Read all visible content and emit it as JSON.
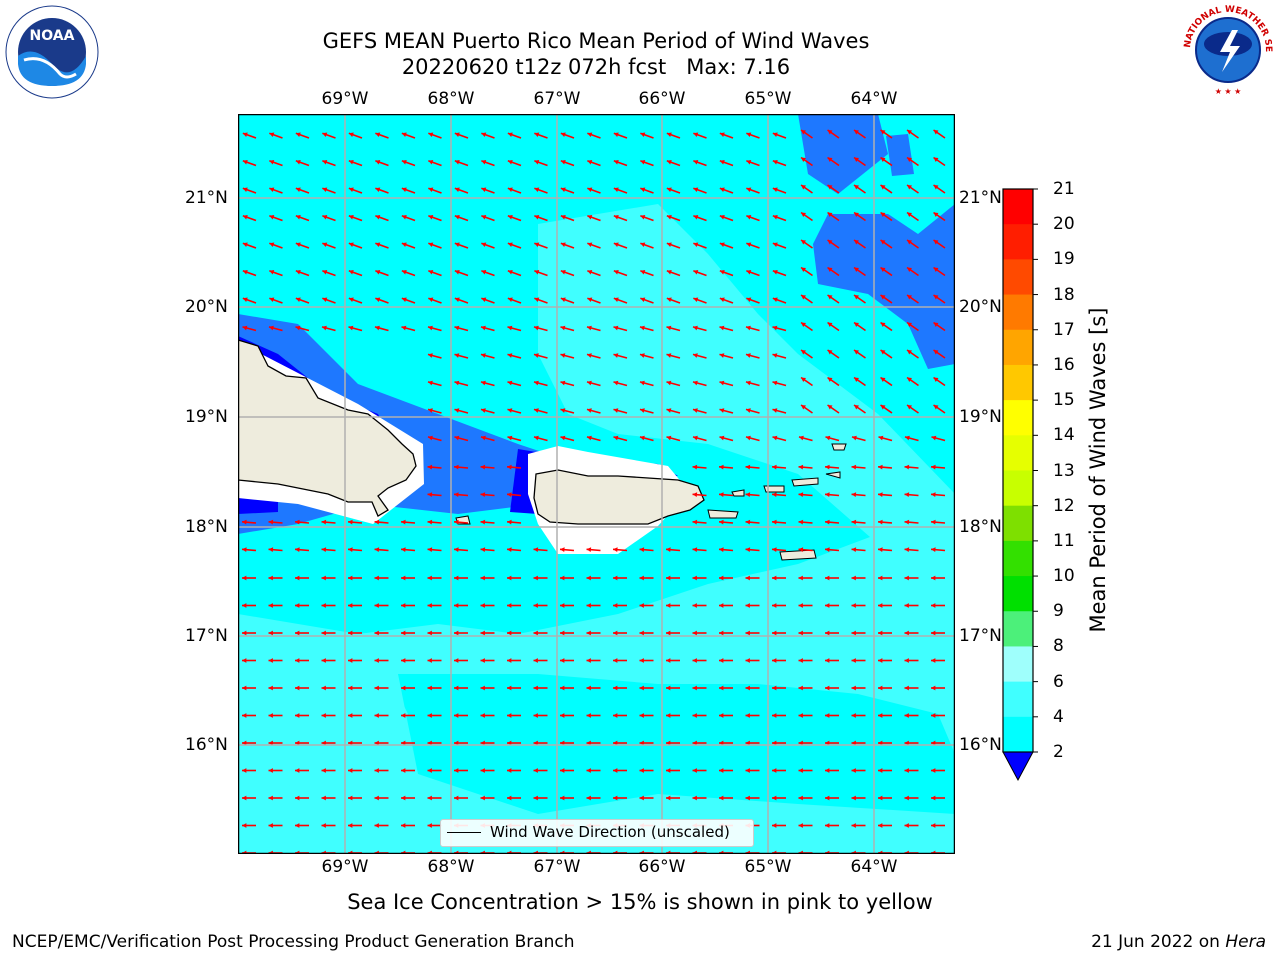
{
  "title_line1": "GEFS MEAN Puerto Rico Mean Period of Wind Waves",
  "title_line2": "20220620 t12z 072h fcst   Max: 7.16",
  "lon_ticks": [
    "69°W",
    "68°W",
    "67°W",
    "66°W",
    "65°W",
    "64°W"
  ],
  "lat_ticks": [
    "21°N",
    "20°N",
    "19°N",
    "18°N",
    "17°N",
    "16°N"
  ],
  "legend_label": "Wind Wave Direction (unscaled)",
  "colorbar": {
    "label": "Mean Period of Wind Waves [s]",
    "ticks": [
      "2",
      "4",
      "6",
      "8",
      "9",
      "10",
      "11",
      "12",
      "13",
      "14",
      "15",
      "16",
      "17",
      "18",
      "19",
      "20",
      "21"
    ],
    "colors": [
      "#0000ff",
      "#1e78ff",
      "#00ffff",
      "#40ffff",
      "#9ffffc",
      "#4cf07a",
      "#00e000",
      "#33e000",
      "#7ee000",
      "#c8ff00",
      "#e6ff00",
      "#ffff00",
      "#ffc800",
      "#ffa500",
      "#ff7a00",
      "#ff4a00",
      "#ff1e00",
      "#ff0000"
    ]
  },
  "map": {
    "ocean_color": "#00ffff",
    "land_color": "#eeecdd",
    "arrow_color": "#ff0000"
  },
  "caption": "Sea Ice Concentration > 15% is shown in pink to yellow",
  "footer_left": "NCEP/EMC/Verification Post Processing Product Generation Branch",
  "footer_right_prefix": "21 Jun 2022 on ",
  "footer_right_host": "Hera",
  "logo_noaa": "NOAA",
  "logo_nws": "NATIONAL WEATHER SERVICE"
}
